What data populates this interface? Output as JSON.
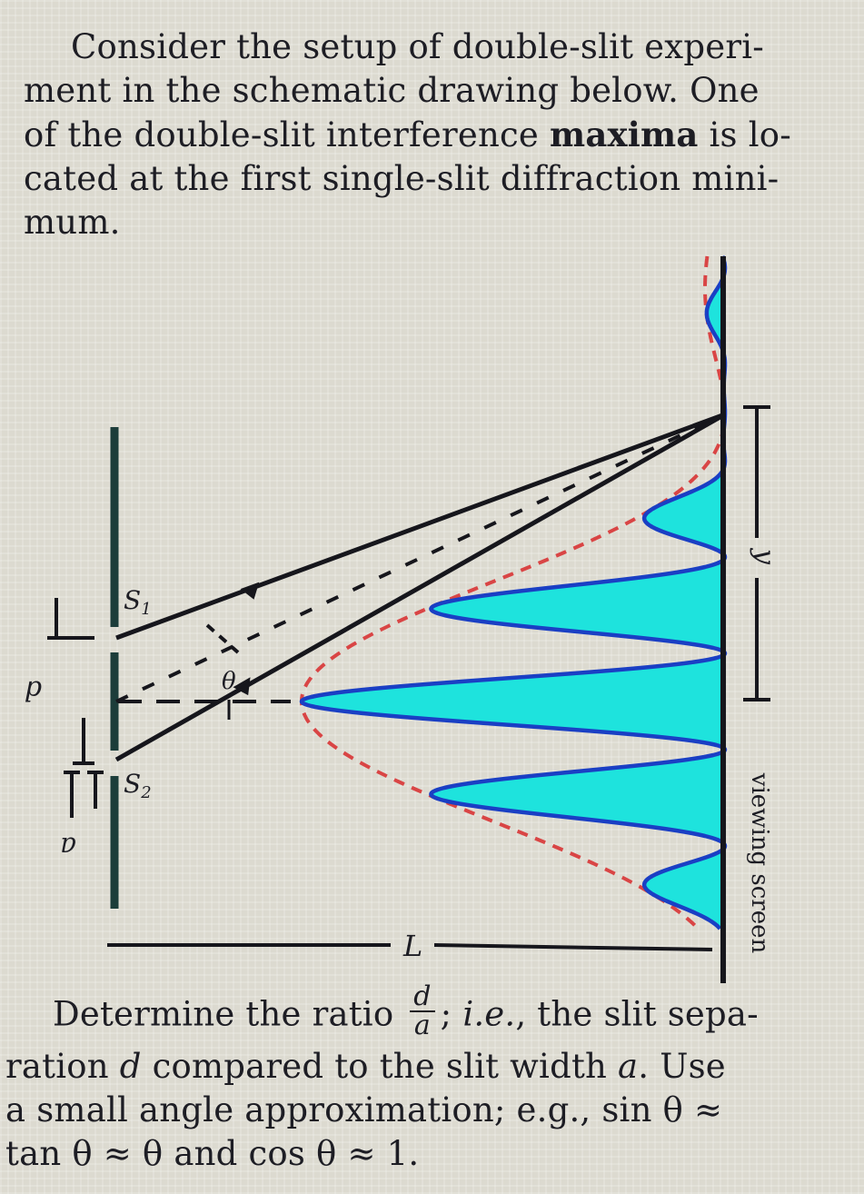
{
  "intro": {
    "line1": "Consider the setup of double-slit experi-",
    "line2a": "ment in the schematic drawing below.  One",
    "line3a": "of the double-slit interference ",
    "line3b": "maxima",
    "line3c": " is lo-",
    "line4": "cated at the first single-slit diffraction mini-",
    "line5": "mum."
  },
  "diagram": {
    "slit1_label": "S",
    "slit1_sub": "1",
    "slit2_label": "S",
    "slit2_sub": "2",
    "d_label": "d",
    "a_label": "a",
    "theta_label": "θ",
    "L_label": "L",
    "y_label": "y",
    "screen_label": "viewing screen",
    "colors": {
      "fill": "#1ee3dd",
      "outline": "#1a3fc4",
      "envelope": "#d94545",
      "lines": "#16161c",
      "barrier": "#1c3d3a"
    }
  },
  "outro": {
    "line1a": "Determine the ratio ",
    "frac_num": "d",
    "frac_den": "a",
    "line1b": "; ",
    "line1c": "i.e.",
    "line1d": ", the slit sepa-",
    "line2a": "ration ",
    "line2b": "d",
    "line2c": " compared to the slit width ",
    "line2d": "a",
    "line2e": ".  Use",
    "line3": "a small angle approximation; e.g., sin θ ≈",
    "line4": "tan θ ≈ θ and cos θ ≈ 1."
  }
}
